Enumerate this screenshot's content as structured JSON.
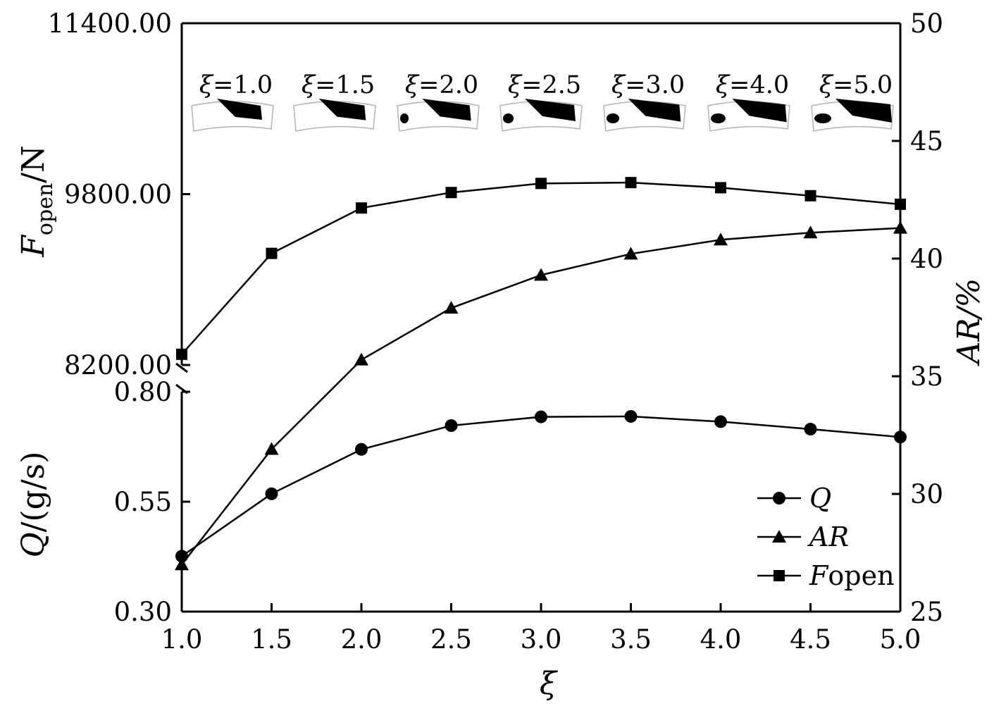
{
  "chart_data": {
    "type": "line",
    "x": [
      1.0,
      1.5,
      2.0,
      2.5,
      3.0,
      3.5,
      4.0,
      4.5,
      5.0
    ],
    "x_tick_labels": [
      "1.0",
      "1.5",
      "2.0",
      "2.5",
      "3.0",
      "3.5",
      "4.0",
      "4.5",
      "5.0"
    ],
    "xlim": [
      1.0,
      5.0
    ],
    "xlabel": "ξ",
    "left_axis_top": {
      "label_main": "F",
      "label_sub": "open",
      "label_unit": "/N",
      "ylim": [
        8200,
        11400
      ],
      "tick_values": [
        8200,
        9800,
        11400
      ],
      "tick_labels": [
        "8200.00",
        "9800.00",
        "11400.00"
      ]
    },
    "left_axis_bottom": {
      "label_main": "Q",
      "label_unit": "/(g/s)",
      "ylim": [
        0.3,
        0.8
      ],
      "tick_values": [
        0.3,
        0.55,
        0.8
      ],
      "tick_labels": [
        "0.30",
        "0.55",
        "0.80"
      ]
    },
    "right_axis": {
      "label_main": "AR",
      "label_unit": "/%",
      "ylim": [
        25,
        50
      ],
      "tick_values": [
        25,
        30,
        35,
        40,
        45,
        50
      ],
      "tick_labels": [
        "25",
        "30",
        "35",
        "40",
        "45",
        "50"
      ]
    },
    "series": [
      {
        "name": "Q",
        "axis": "left_axis_bottom",
        "marker": "circle",
        "values": [
          0.426,
          0.568,
          0.669,
          0.723,
          0.743,
          0.744,
          0.732,
          0.715,
          0.697
        ]
      },
      {
        "name": "AR",
        "axis": "right_axis",
        "marker": "triangle",
        "values": [
          27.0,
          31.9,
          35.7,
          37.9,
          39.3,
          40.2,
          40.8,
          41.1,
          41.3
        ]
      },
      {
        "name": "F",
        "name_sub": "open",
        "axis": "left_axis_top",
        "marker": "square",
        "values": [
          8300,
          9245,
          9670,
          9815,
          9900,
          9908,
          9860,
          9785,
          9705
        ]
      }
    ],
    "legend_position": "bottom-right",
    "inset_labels": [
      "ξ=1.0",
      "ξ=1.5",
      "ξ=2.0",
      "ξ=2.5",
      "ξ=3.0",
      "ξ=4.0",
      "ξ=5.0"
    ],
    "colors": {
      "line": "#000000",
      "inset_fill": "#000000",
      "inset_outline": "#b3b3b3"
    }
  }
}
